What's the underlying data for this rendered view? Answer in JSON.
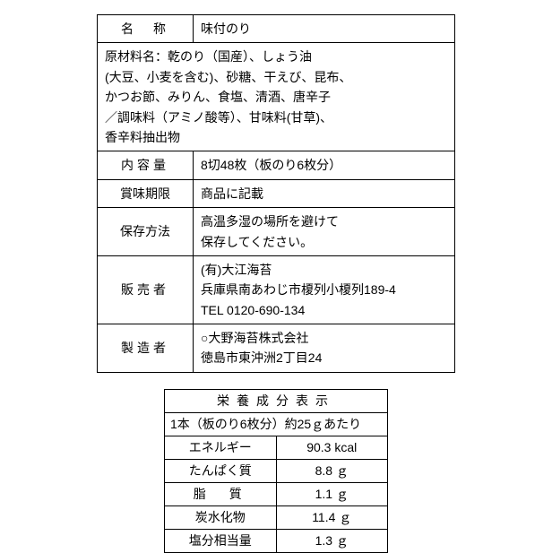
{
  "main": {
    "name_label": "名　称",
    "name_value": "味付のり",
    "ingredients_line1": "原材料名：乾のり（国産）、しょう油",
    "ingredients_line2": "(大豆、小麦を含む)、砂糖、干えび、昆布、",
    "ingredients_line3": "かつお節、みりん、食塩、清酒、唐辛子",
    "ingredients_line4": "／調味料（アミノ酸等）、甘味料(甘草)、",
    "ingredients_line5": "香辛料抽出物",
    "content_label": "内容量",
    "content_value": "8切48枚（板のり6枚分）",
    "expiry_label": "賞味期限",
    "expiry_value": "商品に記載",
    "storage_label": "保存方法",
    "storage_line1": "高温多湿の場所を避けて",
    "storage_line2": "保存してください。",
    "seller_label": "販売者",
    "seller_line1": "(有)大江海苔",
    "seller_line2": "兵庫県南あわじ市榎列小榎列189-4",
    "seller_line3": "TEL 0120-690-134",
    "mfr_label": "製造者",
    "mfr_line1": "○大野海苔株式会社",
    "mfr_line2": "徳島市東沖洲2丁目24"
  },
  "nutrition": {
    "title": "栄養成分表示",
    "subtitle": "1本（板のり6枚分）約25ｇあたり",
    "rows": [
      {
        "label": "エネルギー",
        "value": "90.3 kcal"
      },
      {
        "label": "たんぱく質",
        "value": "8.8 ｇ"
      },
      {
        "label": "脂　質",
        "value": "1.1 ｇ"
      },
      {
        "label": "炭水化物",
        "value": "11.4 ｇ"
      },
      {
        "label": "塩分相当量",
        "value": "1.3 ｇ"
      }
    ]
  }
}
